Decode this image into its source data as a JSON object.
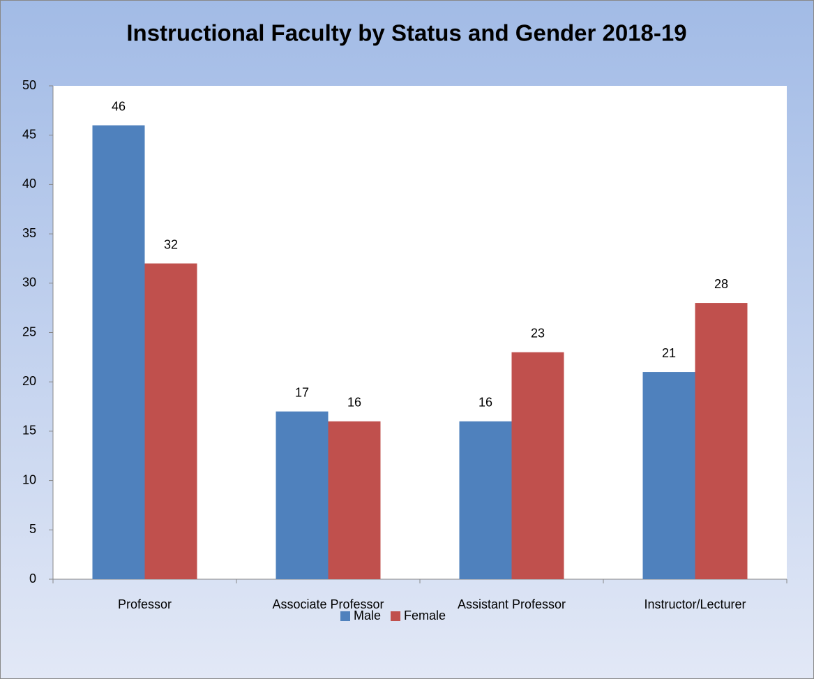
{
  "chart_data": {
    "type": "bar",
    "title": "Instructional  Faculty by Status and Gender 2018-19",
    "categories": [
      "Professor",
      "Associate Professor",
      "Assistant Professor",
      "Instructor/Lecturer"
    ],
    "series": [
      {
        "name": "Male",
        "color": "#4f81bd",
        "values": [
          46,
          17,
          16,
          21
        ]
      },
      {
        "name": "Female",
        "color": "#c0504d",
        "values": [
          32,
          16,
          23,
          28
        ]
      }
    ],
    "ylim": [
      0,
      50
    ],
    "yticks": [
      0,
      5,
      10,
      15,
      20,
      25,
      30,
      35,
      40,
      45,
      50
    ],
    "legend": "bottom"
  }
}
